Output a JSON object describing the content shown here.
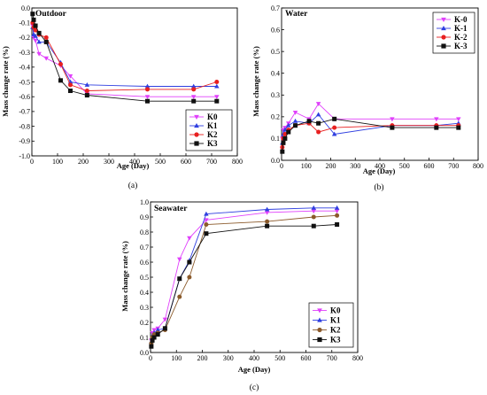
{
  "colors": {
    "K0": "#e040fb",
    "K1": "#2f3fe0",
    "K2": "#e82020",
    "K3": "#111111",
    "K2_seawater": "#8b5a2b"
  },
  "chart_data": [
    {
      "type": "line",
      "panel": "(a)",
      "title": "Outdoor",
      "xlabel": "Age (Day)",
      "ylabel": "Mass change rate (%)",
      "xlim": [
        0,
        800
      ],
      "ylim": [
        -1.0,
        0.0
      ],
      "xticks": [
        0,
        100,
        200,
        300,
        400,
        500,
        600,
        700,
        800
      ],
      "yticks": [
        0.0,
        -0.1,
        -0.2,
        -0.3,
        -0.4,
        -0.5,
        -0.6,
        -0.7,
        -0.8,
        -0.9,
        -1.0
      ],
      "xtick_labels": [
        "0",
        "100",
        "200",
        "300",
        "400",
        "500",
        "600",
        "700",
        "800"
      ],
      "ytick_labels": [
        "0.0",
        "-0.1",
        "-0.2",
        "-0.3",
        "-0.4",
        "-0.5",
        "-0.6",
        "-0.7",
        "-0.8",
        "-0.9",
        "-1.0"
      ],
      "legend_position": "bottom-right",
      "grid": false,
      "series": [
        {
          "name": "K0",
          "marker": "triangle-down",
          "x": [
            3,
            7,
            14,
            28,
            56,
            112,
            150,
            215,
            450,
            630,
            720
          ],
          "y": [
            -0.12,
            -0.2,
            -0.22,
            -0.31,
            -0.34,
            -0.39,
            -0.46,
            -0.58,
            -0.6,
            -0.6,
            -0.6
          ]
        },
        {
          "name": "K1",
          "marker": "triangle-up",
          "x": [
            3,
            7,
            14,
            28,
            56,
            112,
            150,
            215,
            450,
            630,
            720
          ],
          "y": [
            -0.13,
            -0.18,
            -0.19,
            -0.23,
            -0.23,
            -0.37,
            -0.5,
            -0.52,
            -0.53,
            -0.53,
            -0.53
          ]
        },
        {
          "name": "K2",
          "marker": "circle",
          "x": [
            3,
            7,
            14,
            28,
            56,
            112,
            150,
            215,
            450,
            630,
            720
          ],
          "y": [
            -0.1,
            -0.13,
            -0.15,
            -0.18,
            -0.2,
            -0.38,
            -0.52,
            -0.56,
            -0.55,
            -0.55,
            -0.5
          ]
        },
        {
          "name": "K3",
          "marker": "square",
          "x": [
            3,
            7,
            14,
            28,
            56,
            112,
            150,
            215,
            450,
            630,
            720
          ],
          "y": [
            -0.04,
            -0.08,
            -0.12,
            -0.17,
            -0.23,
            -0.49,
            -0.56,
            -0.59,
            -0.63,
            -0.63,
            -0.63
          ]
        }
      ]
    },
    {
      "type": "line",
      "panel": "(b)",
      "title": "Water",
      "xlabel": "Age (Day)",
      "ylabel": "Mass change rate (%)",
      "xlim": [
        0,
        800
      ],
      "ylim": [
        0.0,
        0.7
      ],
      "xticks": [
        0,
        100,
        200,
        300,
        400,
        500,
        600,
        700,
        800
      ],
      "yticks": [
        0.0,
        0.1,
        0.2,
        0.3,
        0.4,
        0.5,
        0.6,
        0.7
      ],
      "xtick_labels": [
        "0",
        "100",
        "200",
        "300",
        "400",
        "500",
        "600",
        "700",
        "800"
      ],
      "ytick_labels": [
        "0.0",
        "0.1",
        "0.2",
        "0.3",
        "0.4",
        "0.5",
        "0.6",
        "0.7"
      ],
      "legend_position": "top-right",
      "grid": false,
      "series": [
        {
          "name": "K-0",
          "marker": "triangle-down",
          "x": [
            3,
            7,
            14,
            28,
            56,
            112,
            150,
            215,
            450,
            630,
            720
          ],
          "y": [
            0.1,
            0.14,
            0.15,
            0.17,
            0.22,
            0.19,
            0.26,
            0.19,
            0.19,
            0.19,
            0.19
          ]
        },
        {
          "name": "K-1",
          "marker": "triangle-up",
          "x": [
            3,
            7,
            14,
            28,
            56,
            112,
            150,
            215,
            450,
            630,
            720
          ],
          "y": [
            0.08,
            0.12,
            0.14,
            0.16,
            0.18,
            0.17,
            0.21,
            0.12,
            0.16,
            0.16,
            0.17
          ]
        },
        {
          "name": "K-2",
          "marker": "circle",
          "x": [
            3,
            7,
            14,
            28,
            56,
            112,
            150,
            215,
            450,
            630,
            720
          ],
          "y": [
            0.06,
            0.1,
            0.12,
            0.14,
            0.16,
            0.17,
            0.13,
            0.15,
            0.16,
            0.16,
            0.16
          ]
        },
        {
          "name": "K-3",
          "marker": "square",
          "x": [
            3,
            7,
            14,
            28,
            56,
            112,
            150,
            215,
            450,
            630,
            720
          ],
          "y": [
            0.04,
            0.08,
            0.1,
            0.13,
            0.16,
            0.18,
            0.17,
            0.19,
            0.15,
            0.15,
            0.15
          ]
        }
      ]
    },
    {
      "type": "line",
      "panel": "(c)",
      "title": "Seawater",
      "xlabel": "Age (Day)",
      "ylabel": "Mass change rate (%)",
      "xlim": [
        0,
        800
      ],
      "ylim": [
        0.0,
        1.0
      ],
      "xticks": [
        0,
        100,
        200,
        300,
        400,
        500,
        600,
        700,
        800
      ],
      "yticks": [
        0.0,
        0.1,
        0.2,
        0.3,
        0.4,
        0.5,
        0.6,
        0.7,
        0.8,
        0.9,
        1.0
      ],
      "xtick_labels": [
        "0",
        "100",
        "200",
        "300",
        "400",
        "500",
        "600",
        "700",
        "800"
      ],
      "ytick_labels": [
        "0.0",
        "0.1",
        "0.2",
        "0.3",
        "0.4",
        "0.5",
        "0.6",
        "0.7",
        "0.8",
        "0.9",
        "1.0"
      ],
      "legend_position": "bottom-right",
      "grid": false,
      "series": [
        {
          "name": "K0",
          "marker": "triangle-down",
          "x": [
            3,
            7,
            14,
            28,
            56,
            112,
            150,
            215,
            450,
            630,
            720
          ],
          "y": [
            0.08,
            0.13,
            0.15,
            0.16,
            0.22,
            0.62,
            0.76,
            0.88,
            0.93,
            0.94,
            0.94
          ]
        },
        {
          "name": "K1",
          "marker": "triangle-up",
          "x": [
            3,
            7,
            14,
            28,
            56,
            112,
            150,
            215,
            450,
            630,
            720
          ],
          "y": [
            0.07,
            0.11,
            0.13,
            0.15,
            0.16,
            0.49,
            0.61,
            0.92,
            0.95,
            0.96,
            0.96
          ]
        },
        {
          "name": "K2",
          "marker": "circle",
          "x": [
            3,
            7,
            14,
            28,
            56,
            112,
            150,
            215,
            450,
            630,
            720
          ],
          "y": [
            0.06,
            0.1,
            0.12,
            0.13,
            0.15,
            0.37,
            0.5,
            0.85,
            0.87,
            0.9,
            0.91
          ]
        },
        {
          "name": "K3",
          "marker": "square",
          "x": [
            3,
            7,
            14,
            28,
            56,
            112,
            150,
            215,
            450,
            630,
            720
          ],
          "y": [
            0.04,
            0.08,
            0.1,
            0.12,
            0.16,
            0.49,
            0.6,
            0.79,
            0.84,
            0.84,
            0.85
          ]
        }
      ]
    }
  ]
}
